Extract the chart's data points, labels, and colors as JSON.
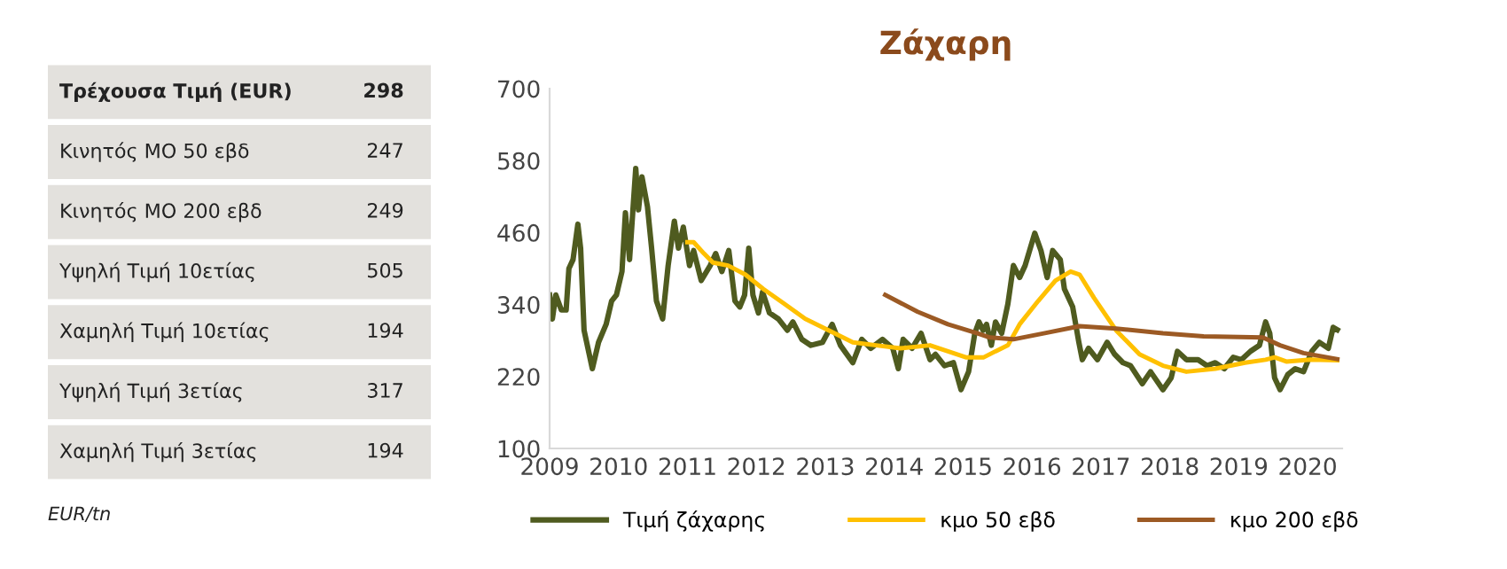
{
  "chart_data": [
    {
      "type": "other",
      "categories": [
        "Τρέχουσα Τιμή (EUR)",
        "Κινητός ΜΟ 50 εβδ",
        "Κινητός ΜΟ 200 εβδ",
        "Υψηλή Τιμή 10ετίας",
        "Χαμηλή Τιμή 10ετίας",
        "Υψηλή Τιμή 3ετίας",
        "Χαμηλή Τιμή 3ετίας"
      ],
      "values": [
        298,
        247,
        249,
        505,
        194,
        317,
        194
      ],
      "data_labels": true,
      "annotations": [
        "EUR/tn"
      ]
    },
    {
      "type": "line",
      "title": "Ζάχαρη",
      "ylim": [
        100,
        700
      ],
      "yticks": [
        100,
        220,
        340,
        460,
        580,
        700
      ],
      "xlim": [
        2009,
        2020.5
      ],
      "xticks": [
        2009,
        2010,
        2011,
        2012,
        2013,
        2014,
        2015,
        2016,
        2017,
        2018,
        2019,
        2020
      ],
      "grid": false,
      "legend": "bottom",
      "marker": "none",
      "line_style": "solid",
      "series": [
        {
          "name": "Τιμή ζάχαρης",
          "color": "#4f5b1f",
          "x": [
            2009.0,
            2009.04,
            2009.09,
            2009.17,
            2009.24,
            2009.28,
            2009.34,
            2009.41,
            2009.45,
            2009.5,
            2009.62,
            2009.71,
            2009.82,
            2009.9,
            2009.97,
            2010.05,
            2010.1,
            2010.16,
            2010.25,
            2010.29,
            2010.34,
            2010.42,
            2010.48,
            2010.55,
            2010.64,
            2010.72,
            2010.81,
            2010.87,
            2010.94,
            2011.03,
            2011.09,
            2011.2,
            2011.33,
            2011.41,
            2011.5,
            2011.6,
            2011.69,
            2011.76,
            2011.83,
            2011.89,
            2011.95,
            2012.03,
            2012.09,
            2012.19,
            2012.32,
            2012.45,
            2012.53,
            2012.66,
            2012.79,
            2012.96,
            2013.1,
            2013.22,
            2013.4,
            2013.53,
            2013.66,
            2013.83,
            2013.98,
            2014.06,
            2014.13,
            2014.26,
            2014.39,
            2014.52,
            2014.6,
            2014.73,
            2014.86,
            2014.97,
            2015.08,
            2015.17,
            2015.23,
            2015.29,
            2015.34,
            2015.41,
            2015.47,
            2015.56,
            2015.65,
            2015.73,
            2015.82,
            2015.9,
            2016.04,
            2016.13,
            2016.22,
            2016.3,
            2016.41,
            2016.47,
            2016.59,
            2016.68,
            2016.73,
            2016.82,
            2016.95,
            2017.09,
            2017.2,
            2017.32,
            2017.43,
            2017.6,
            2017.72,
            2017.9,
            2018.02,
            2018.11,
            2018.24,
            2018.41,
            2018.54,
            2018.66,
            2018.79,
            2018.92,
            2019.04,
            2019.17,
            2019.3,
            2019.39,
            2019.45,
            2019.52,
            2019.6,
            2019.71,
            2019.82,
            2019.94,
            2020.06,
            2020.17,
            2020.3,
            2020.37,
            2020.43
          ],
          "values": [
            356,
            316,
            356,
            331,
            331,
            400,
            415,
            474,
            434,
            297,
            233,
            277,
            307,
            346,
            356,
            395,
            493,
            415,
            567,
            498,
            553,
            503,
            434,
            346,
            316,
            405,
            479,
            434,
            469,
            405,
            430,
            380,
            405,
            425,
            395,
            430,
            346,
            336,
            356,
            434,
            356,
            326,
            361,
            326,
            316,
            297,
            311,
            282,
            272,
            277,
            307,
            272,
            243,
            282,
            267,
            282,
            267,
            233,
            282,
            267,
            292,
            248,
            257,
            238,
            243,
            198,
            228,
            292,
            311,
            297,
            307,
            272,
            311,
            292,
            341,
            405,
            385,
            405,
            459,
            430,
            385,
            430,
            415,
            366,
            336,
            277,
            248,
            267,
            248,
            277,
            257,
            243,
            238,
            208,
            228,
            198,
            218,
            262,
            248,
            248,
            238,
            243,
            233,
            252,
            248,
            262,
            272,
            311,
            292,
            218,
            198,
            223,
            233,
            228,
            262,
            277,
            267,
            302,
            298
          ]
        },
        {
          "name": "κμο 50 εβδ",
          "color": "#ffc000",
          "x": [
            2011.0,
            2011.09,
            2011.24,
            2011.37,
            2011.59,
            2011.84,
            2012.1,
            2012.41,
            2012.71,
            2013.05,
            2013.4,
            2013.74,
            2014.09,
            2014.52,
            2014.78,
            2015.04,
            2015.3,
            2015.47,
            2015.65,
            2015.82,
            2016.09,
            2016.34,
            2016.56,
            2016.69,
            2016.9,
            2017.22,
            2017.56,
            2017.9,
            2018.24,
            2018.66,
            2019.09,
            2019.39,
            2019.52,
            2019.69,
            2020.04,
            2020.43
          ],
          "values": [
            444,
            444,
            425,
            410,
            405,
            390,
            366,
            341,
            316,
            297,
            277,
            272,
            267,
            272,
            262,
            252,
            252,
            262,
            272,
            307,
            346,
            380,
            395,
            390,
            351,
            297,
            257,
            238,
            228,
            233,
            243,
            248,
            252,
            245,
            248,
            247
          ]
        },
        {
          "name": "κμο 200 εβδ",
          "color": "#9c5a24",
          "x": [
            2013.87,
            2014.34,
            2014.78,
            2015.21,
            2015.39,
            2015.73,
            2016.17,
            2016.69,
            2017.22,
            2017.9,
            2018.49,
            2019.35,
            2019.6,
            2019.94,
            2020.43
          ],
          "values": [
            356,
            328,
            307,
            292,
            285,
            282,
            292,
            304,
            300,
            292,
            287,
            285,
            272,
            259,
            249
          ]
        }
      ]
    }
  ]
}
